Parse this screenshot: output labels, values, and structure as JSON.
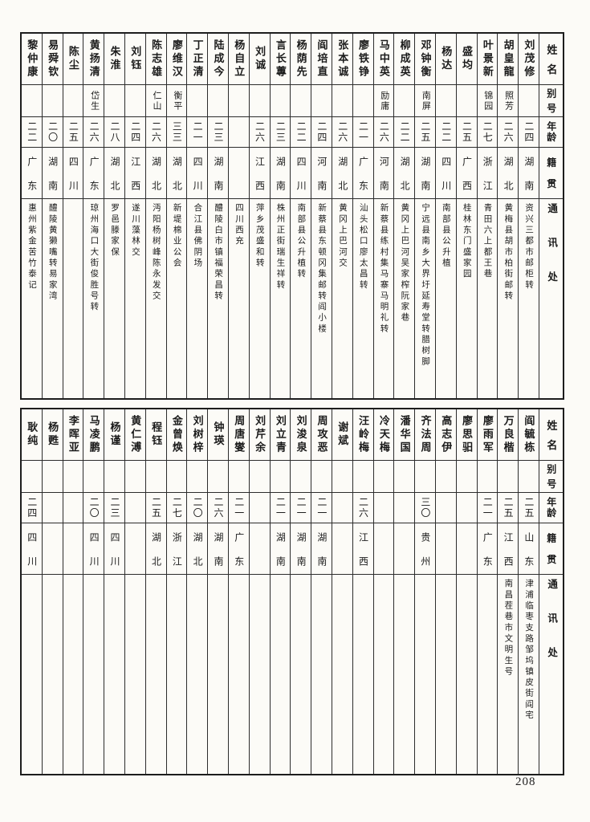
{
  "page_number": "208",
  "headers": {
    "name": "姓名",
    "alias": "别号",
    "age": "年龄",
    "origin": "籍贯",
    "address": "通讯处"
  },
  "top_table": {
    "entries": [
      {
        "name": "刘茂修",
        "alias": "",
        "age": "二四",
        "origin": "湖南",
        "address": "资兴三都市邮柜转"
      },
      {
        "name": "胡皇龍",
        "alias": "照芳",
        "age": "二六",
        "origin": "湖北",
        "address": "黄梅县胡市柏街邮转"
      },
      {
        "name": "叶景新",
        "alias": "锦园",
        "age": "二七",
        "origin": "浙江",
        "address": "青田六上都王巷"
      },
      {
        "name": "盛均",
        "alias": "",
        "age": "二五",
        "origin": "广西",
        "address": "桂林东门盛家园"
      },
      {
        "name": "杨达",
        "alias": "",
        "age": "二二",
        "origin": "四川",
        "address": "南部县公升植"
      },
      {
        "name": "邓钟衡",
        "alias": "南屏",
        "age": "二五",
        "origin": "湖南",
        "address": "宁远县南乡大界圩延寿堂转腊树脚"
      },
      {
        "name": "柳成英",
        "alias": "",
        "age": "二二",
        "origin": "湖北",
        "address": "黄冈上巴河吴家榨阮家巷"
      },
      {
        "name": "马中英",
        "alias": "励庸",
        "age": "二六",
        "origin": "河南",
        "address": "新蔡县练村集马寨马明礼转"
      },
      {
        "name": "廖铁铮",
        "alias": "",
        "age": "二一",
        "origin": "广东",
        "address": "汕头松口廖太昌转"
      },
      {
        "name": "张本诚",
        "alias": "",
        "age": "二六",
        "origin": "湖北",
        "address": "黄冈上巴河交"
      },
      {
        "name": "阎培直",
        "alias": "",
        "age": "二四",
        "origin": "河南",
        "address": "新蔡县东顿冈集邮转阎小楼"
      },
      {
        "name": "杨荫先",
        "alias": "",
        "age": "二二",
        "origin": "四川",
        "address": "南部县公升植转"
      },
      {
        "name": "言长蓴",
        "alias": "",
        "age": "二三",
        "origin": "湖南",
        "address": "株州正街瑞生祥转"
      },
      {
        "name": "刘诚",
        "alias": "",
        "age": "二六",
        "origin": "江西",
        "address": "萍乡茂盛和转"
      },
      {
        "name": "杨自立",
        "alias": "",
        "age": "",
        "origin": "",
        "address": "四川西充"
      },
      {
        "name": "陆成今",
        "alias": "",
        "age": "二三",
        "origin": "湖南",
        "address": "醴陵白市镇福荣昌转"
      },
      {
        "name": "丁正清",
        "alias": "",
        "age": "二一",
        "origin": "四川",
        "address": "合江县佛阴场"
      },
      {
        "name": "廖维汉",
        "alias": "衡平",
        "age": "三三",
        "origin": "湖北",
        "address": "新堤棉业公会"
      },
      {
        "name": "陈志雄",
        "alias": "仁山",
        "age": "二六",
        "origin": "湖北",
        "address": "沔阳杨树峰陈永发交"
      },
      {
        "name": "刘钰",
        "alias": "",
        "age": "二四",
        "origin": "江西",
        "address": "遂川藻林交"
      },
      {
        "name": "朱淮",
        "alias": "",
        "age": "二八",
        "origin": "湖北",
        "address": "罗邑滕家保"
      },
      {
        "name": "黄扬清",
        "alias": "岱生",
        "age": "二六",
        "origin": "广东",
        "address": "琼州海口大街俊胜号转"
      },
      {
        "name": "陈尘",
        "alias": "",
        "age": "二五",
        "origin": "四川",
        "address": ""
      },
      {
        "name": "易舜钦",
        "alias": "",
        "age": "二〇",
        "origin": "湖南",
        "address": "醴陵黄獭嘴转易家湾"
      },
      {
        "name": "黎仲康",
        "alias": "",
        "age": "二二",
        "origin": "广东",
        "address": "惠州紫金苦竹泰记"
      }
    ]
  },
  "bottom_table": {
    "entries": [
      {
        "name": "阎毓栋",
        "alias": "",
        "age": "二五",
        "origin": "山东",
        "address": "津浦临枣支路邹坞镇皮街阎宅"
      },
      {
        "name": "万良楷",
        "alias": "",
        "age": "二五",
        "origin": "江西",
        "address": "南昌茬巷市文明生号"
      },
      {
        "name": "廖雨军",
        "alias": "",
        "age": "二一",
        "origin": "广东",
        "address": ""
      },
      {
        "name": "廖思驲",
        "alias": "",
        "age": "",
        "origin": "",
        "address": ""
      },
      {
        "name": "高志伊",
        "alias": "",
        "age": "",
        "origin": "",
        "address": ""
      },
      {
        "name": "齐法周",
        "alias": "",
        "age": "三〇",
        "origin": "贵州",
        "address": ""
      },
      {
        "name": "潘华国",
        "alias": "",
        "age": "",
        "origin": "",
        "address": ""
      },
      {
        "name": "冷天梅",
        "alias": "",
        "age": "",
        "origin": "",
        "address": ""
      },
      {
        "name": "汪岭梅",
        "alias": "",
        "age": "二六",
        "origin": "江西",
        "address": ""
      },
      {
        "name": "谢斌",
        "alias": "",
        "age": "",
        "origin": "",
        "address": ""
      },
      {
        "name": "周攻恶",
        "alias": "",
        "age": "二一",
        "origin": "湖南",
        "address": ""
      },
      {
        "name": "刘浚泉",
        "alias": "",
        "age": "二一",
        "origin": "湖南",
        "address": ""
      },
      {
        "name": "刘立青",
        "alias": "",
        "age": "二一",
        "origin": "湖南",
        "address": ""
      },
      {
        "name": "刘芹余",
        "alias": "",
        "age": "",
        "origin": "",
        "address": ""
      },
      {
        "name": "周唐燮",
        "alias": "",
        "age": "二一",
        "origin": "广东",
        "address": ""
      },
      {
        "name": "钟瑛",
        "alias": "",
        "age": "二六",
        "origin": "湖南",
        "address": ""
      },
      {
        "name": "刘树梓",
        "alias": "",
        "age": "二〇",
        "origin": "湖北",
        "address": ""
      },
      {
        "name": "金曾焕",
        "alias": "",
        "age": "二七",
        "origin": "浙江",
        "address": ""
      },
      {
        "name": "程钰",
        "alias": "",
        "age": "二五",
        "origin": "湖北",
        "address": ""
      },
      {
        "name": "黄仁溥",
        "alias": "",
        "age": "",
        "origin": "",
        "address": ""
      },
      {
        "name": "杨谨",
        "alias": "",
        "age": "二三",
        "origin": "四川",
        "address": ""
      },
      {
        "name": "马凌鹏",
        "alias": "",
        "age": "二〇",
        "origin": "四川",
        "address": ""
      },
      {
        "name": "李晖亚",
        "alias": "",
        "age": "",
        "origin": "",
        "address": ""
      },
      {
        "name": "杨甦",
        "alias": "",
        "age": "",
        "origin": "",
        "address": ""
      },
      {
        "name": "耿纯",
        "alias": "",
        "age": "二四",
        "origin": "四川",
        "address": ""
      }
    ]
  }
}
